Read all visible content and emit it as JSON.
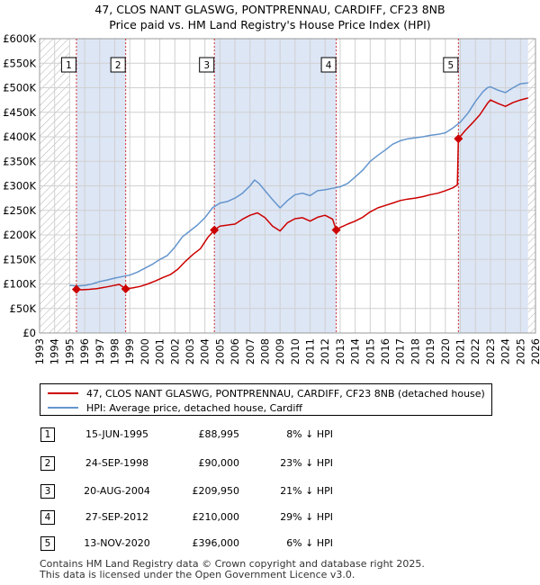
{
  "title_line1": "47, CLOS NANT GLASWG, PONTPRENNAU, CARDIFF, CF23 8NB",
  "title_line2": "Price paid vs. HM Land Registry's House Price Index (HPI)",
  "colors": {
    "property": "#cc0000",
    "hpi": "#6495cd",
    "shade": "#dde6f5",
    "hatch": "#b0b0b0"
  },
  "legend": {
    "property_label": "47, CLOS NANT GLASWG, PONTPRENNAU, CARDIFF, CF23 8NB (detached house)",
    "hpi_label": "HPI: Average price, detached house, Cardiff"
  },
  "transactions": [
    {
      "num": "1",
      "date": "15-JUN-1995",
      "price": "£88,995",
      "hpi": "8% ↓ HPI"
    },
    {
      "num": "2",
      "date": "24-SEP-1998",
      "price": "£90,000",
      "hpi": "23% ↓ HPI"
    },
    {
      "num": "3",
      "date": "20-AUG-2004",
      "price": "£209,950",
      "hpi": "21% ↓ HPI"
    },
    {
      "num": "4",
      "date": "27-SEP-2012",
      "price": "£210,000",
      "hpi": "29% ↓ HPI"
    },
    {
      "num": "5",
      "date": "13-NOV-2020",
      "price": "£396,000",
      "hpi": "6% ↓ HPI"
    }
  ],
  "footer_line1": "Contains HM Land Registry data © Crown copyright and database right 2025.",
  "footer_line2": "This data is licensed under the Open Government Licence v3.0.",
  "chart_data": {
    "type": "line",
    "title": "47, CLOS NANT GLASWG, PONTPRENNAU, CARDIFF, CF23 8NB",
    "subtitle": "Price paid vs. HM Land Registry's House Price Index (HPI)",
    "xlabel": "",
    "ylabel": "",
    "xlim": [
      1993,
      2026
    ],
    "ylim": [
      0,
      600000
    ],
    "grid": true,
    "legend_position": "below",
    "x_ticks": [
      "1993",
      "1994",
      "1995",
      "1996",
      "1997",
      "1998",
      "1999",
      "2000",
      "2001",
      "2002",
      "2003",
      "2004",
      "2005",
      "2006",
      "2007",
      "2008",
      "2009",
      "2010",
      "2011",
      "2012",
      "2013",
      "2014",
      "2015",
      "2016",
      "2017",
      "2018",
      "2019",
      "2020",
      "2021",
      "2022",
      "2023",
      "2024",
      "2025",
      "2026"
    ],
    "y_ticks": [
      {
        "v": 0,
        "label": "£0"
      },
      {
        "v": 50000,
        "label": "£50K"
      },
      {
        "v": 100000,
        "label": "£100K"
      },
      {
        "v": 150000,
        "label": "£150K"
      },
      {
        "v": 200000,
        "label": "£200K"
      },
      {
        "v": 250000,
        "label": "£250K"
      },
      {
        "v": 300000,
        "label": "£300K"
      },
      {
        "v": 350000,
        "label": "£350K"
      },
      {
        "v": 400000,
        "label": "£400K"
      },
      {
        "v": 450000,
        "label": "£450K"
      },
      {
        "v": 500000,
        "label": "£500K"
      },
      {
        "v": 550000,
        "label": "£550K"
      },
      {
        "v": 600000,
        "label": "£600K"
      }
    ],
    "shaded_periods": [
      [
        1995.45,
        1998.73
      ],
      [
        2004.63,
        2012.74
      ],
      [
        2020.87,
        2025.5
      ]
    ],
    "hatched_periods": [
      [
        1993,
        1995.0
      ],
      [
        2025.5,
        2026
      ]
    ],
    "markers": [
      {
        "label": "1",
        "x": 1995.45,
        "y": 88995
      },
      {
        "label": "2",
        "x": 1998.73,
        "y": 90000
      },
      {
        "label": "3",
        "x": 2004.63,
        "y": 209950
      },
      {
        "label": "4",
        "x": 2012.74,
        "y": 210000
      },
      {
        "label": "5",
        "x": 2020.87,
        "y": 396000
      }
    ],
    "series": [
      {
        "name": "HPI: Average price, detached house, Cardiff",
        "color": "#6495cd",
        "x": [
          1995.0,
          1995.5,
          1996,
          1996.5,
          1997,
          1997.5,
          1998,
          1998.5,
          1999,
          1999.5,
          2000,
          2000.5,
          2001,
          2001.5,
          2002,
          2002.5,
          2003,
          2003.5,
          2004,
          2004.5,
          2005,
          2005.5,
          2006,
          2006.5,
          2007,
          2007.3,
          2007.6,
          2008,
          2008.5,
          2009,
          2009.5,
          2010,
          2010.5,
          2011,
          2011.5,
          2012,
          2012.5,
          2013,
          2013.5,
          2014,
          2014.5,
          2015,
          2015.5,
          2016,
          2016.5,
          2017,
          2017.5,
          2018,
          2018.5,
          2019,
          2019.5,
          2020,
          2020.5,
          2021,
          2021.5,
          2022,
          2022.5,
          2022.8,
          2023,
          2023.5,
          2024,
          2024.5,
          2025,
          2025.5
        ],
        "values": [
          97000,
          96000,
          97000,
          100000,
          105000,
          108000,
          112000,
          115000,
          118000,
          124000,
          132000,
          140000,
          150000,
          158000,
          175000,
          196000,
          208000,
          220000,
          235000,
          255000,
          265000,
          268000,
          275000,
          285000,
          300000,
          312000,
          305000,
          290000,
          272000,
          255000,
          270000,
          282000,
          285000,
          280000,
          290000,
          292000,
          295000,
          298000,
          305000,
          318000,
          332000,
          350000,
          362000,
          373000,
          385000,
          392000,
          396000,
          398000,
          400000,
          403000,
          405000,
          408000,
          418000,
          430000,
          448000,
          472000,
          492000,
          500000,
          502000,
          495000,
          490000,
          500000,
          508000,
          510000
        ]
      },
      {
        "name": "47, CLOS NANT GLASWG, PONTPRENNAU, CARDIFF, CF23 8NB (detached house)",
        "color": "#cc0000",
        "x": [
          1995.45,
          1995.8,
          1996.3,
          1996.8,
          1997.3,
          1997.8,
          1998.3,
          1998.73,
          1999.2,
          1999.7,
          2000.2,
          2000.7,
          2001.2,
          2001.7,
          2002.2,
          2002.7,
          2003.2,
          2003.7,
          2004.2,
          2004.63,
          2005.0,
          2005.5,
          2006.0,
          2006.5,
          2007.0,
          2007.5,
          2008.0,
          2008.5,
          2009.0,
          2009.5,
          2010.0,
          2010.5,
          2011.0,
          2011.5,
          2012.0,
          2012.5,
          2012.74,
          2013.0,
          2013.5,
          2014.0,
          2014.5,
          2015.0,
          2015.5,
          2016.0,
          2016.5,
          2017.0,
          2017.5,
          2018.0,
          2018.5,
          2019.0,
          2019.5,
          2020.0,
          2020.5,
          2020.8,
          2020.87,
          2021.3,
          2021.8,
          2022.3,
          2022.8,
          2023.0,
          2023.5,
          2024.0,
          2024.5,
          2025.0,
          2025.5
        ],
        "values": [
          88995,
          88000,
          89000,
          90500,
          93000,
          96000,
          99000,
          90000,
          92000,
          95000,
          100000,
          106000,
          113000,
          119000,
          130000,
          146000,
          160000,
          172000,
          195000,
          209950,
          218000,
          220000,
          222000,
          232000,
          240000,
          245000,
          235000,
          218000,
          208000,
          225000,
          233000,
          235000,
          228000,
          236000,
          240000,
          232000,
          210000,
          215000,
          222000,
          228000,
          236000,
          247000,
          255000,
          260000,
          265000,
          270000,
          273000,
          275000,
          278000,
          282000,
          285000,
          290000,
          296000,
          302000,
          396000,
          412000,
          428000,
          445000,
          468000,
          475000,
          468000,
          462000,
          470000,
          475000,
          479000
        ]
      }
    ]
  }
}
